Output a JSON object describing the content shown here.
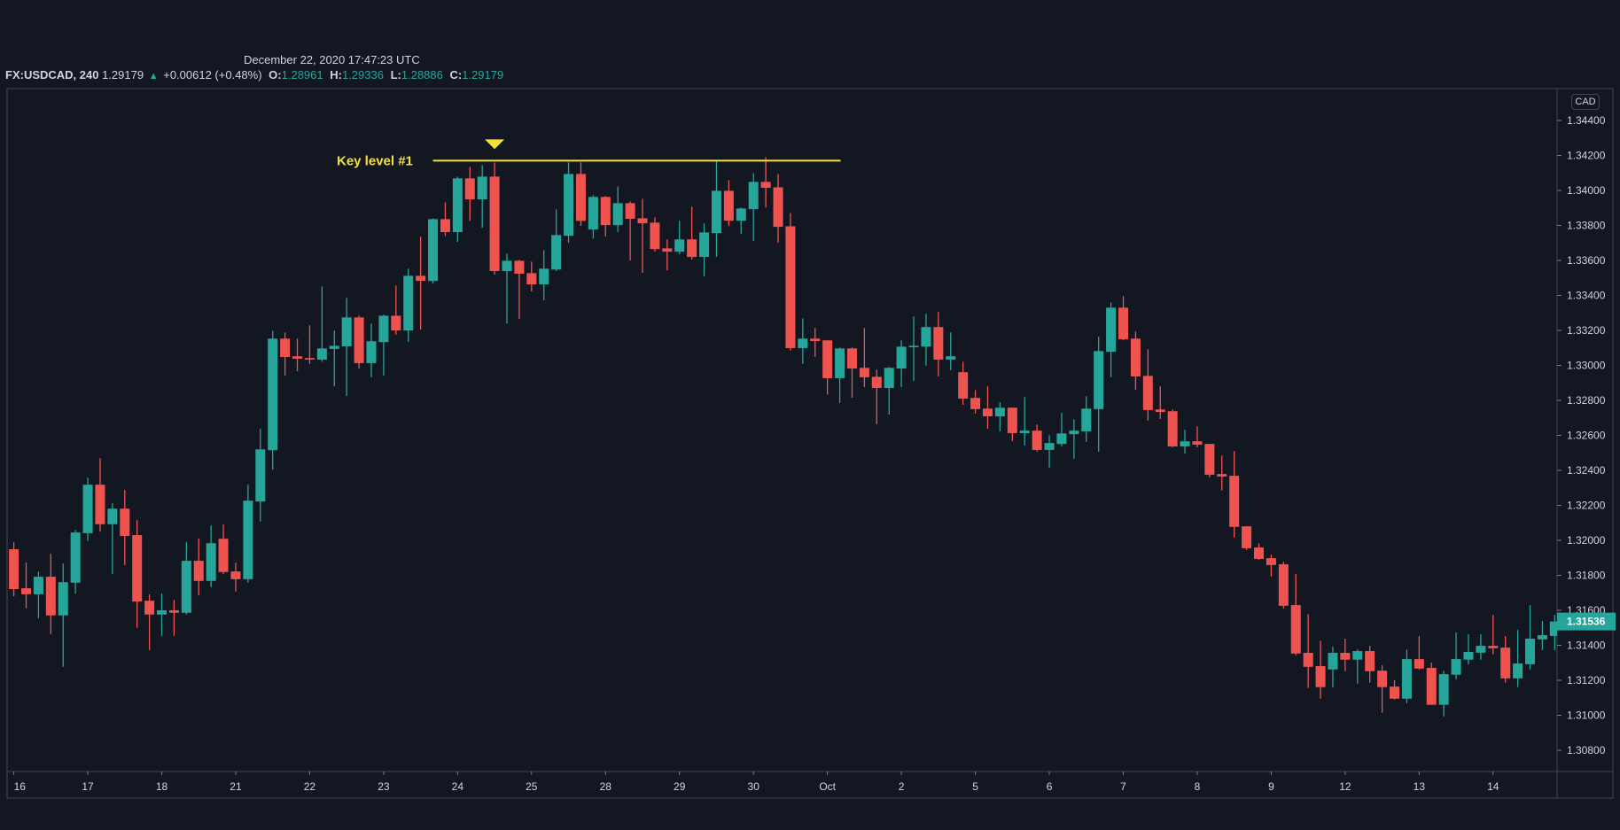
{
  "header": {
    "timestamp": "December 22, 2020 17:47:23 UTC",
    "symbol": "FX:USDCAD, 240",
    "last": "1.29179",
    "change_icon": "triangle-up-icon",
    "change": "+0.00612 (+0.48%)",
    "o_label": "O:",
    "o": "1.28961",
    "h_label": "H:",
    "h": "1.29336",
    "l_label": "L:",
    "l": "1.28886",
    "c_label": "C:",
    "c": "1.29179"
  },
  "price_axis": {
    "currency": "CAD",
    "ticks": [
      "1.34400",
      "1.34200",
      "1.34000",
      "1.33800",
      "1.33600",
      "1.33400",
      "1.33200",
      "1.33000",
      "1.32800",
      "1.32600",
      "1.32400",
      "1.32200",
      "1.32000",
      "1.31800",
      "1.31600",
      "1.31400",
      "1.31200",
      "1.31000",
      "1.30800"
    ],
    "last_price": "1.31536"
  },
  "time_axis": {
    "labels": [
      "16",
      "17",
      "18",
      "21",
      "22",
      "23",
      "24",
      "25",
      "28",
      "29",
      "30",
      "Oct",
      "2",
      "5",
      "6",
      "7",
      "8",
      "9",
      "12",
      "13",
      "14"
    ]
  },
  "annotation": {
    "label": "Key level #1",
    "price": 1.3417,
    "marker_icon": "triangle-down-icon",
    "color": "#f5e236"
  },
  "colors": {
    "background": "#131722",
    "up": "#26a69a",
    "down": "#ef5350",
    "border": "#434651",
    "text": "#d1d4dc"
  },
  "chart_data": {
    "type": "candlestick",
    "title": "",
    "ylabel": "CAD",
    "ylim": [
      1.307,
      1.3452
    ],
    "candles_per_day": 6,
    "ohlc_columns": [
      "open",
      "high",
      "low",
      "close"
    ],
    "ohlc": [
      [
        1.31949,
        1.31989,
        1.3168,
        1.31721
      ],
      [
        1.31726,
        1.31873,
        1.31611,
        1.31692
      ],
      [
        1.31692,
        1.31822,
        1.31555,
        1.31792
      ],
      [
        1.31792,
        1.31923,
        1.31464,
        1.31571
      ],
      [
        1.31571,
        1.31868,
        1.31277,
        1.31761
      ],
      [
        1.31758,
        1.3206,
        1.31696,
        1.32045
      ],
      [
        1.32041,
        1.32358,
        1.31996,
        1.32318
      ],
      [
        1.32318,
        1.3247,
        1.3205,
        1.32092
      ],
      [
        1.32092,
        1.32212,
        1.31808,
        1.32181
      ],
      [
        1.32181,
        1.32288,
        1.31859,
        1.32025
      ],
      [
        1.3203,
        1.32116,
        1.315,
        1.3165
      ],
      [
        1.31655,
        1.31691,
        1.31373,
        1.31576
      ],
      [
        1.31576,
        1.31696,
        1.31454,
        1.316
      ],
      [
        1.316,
        1.3166,
        1.31454,
        1.31586
      ],
      [
        1.31586,
        1.31989,
        1.31576,
        1.31883
      ],
      [
        1.31883,
        1.32009,
        1.31687,
        1.31768
      ],
      [
        1.31768,
        1.32085,
        1.31733,
        1.31984
      ],
      [
        1.32009,
        1.3209,
        1.31808,
        1.31819
      ],
      [
        1.31822,
        1.31873,
        1.31707,
        1.31778
      ],
      [
        1.31778,
        1.32318,
        1.31758,
        1.32227
      ],
      [
        1.32222,
        1.32637,
        1.32107,
        1.3252
      ],
      [
        1.32515,
        1.33198,
        1.32404,
        1.33153
      ],
      [
        1.33153,
        1.33188,
        1.32942,
        1.33048
      ],
      [
        1.33052,
        1.33153,
        1.32967,
        1.33038
      ],
      [
        1.33042,
        1.33229,
        1.33008,
        1.33033
      ],
      [
        1.33033,
        1.33451,
        1.33021,
        1.33097
      ],
      [
        1.33094,
        1.33198,
        1.32881,
        1.33112
      ],
      [
        1.33109,
        1.33386,
        1.32825,
        1.33274
      ],
      [
        1.33274,
        1.33284,
        1.32982,
        1.33013
      ],
      [
        1.33013,
        1.33239,
        1.32932,
        1.33138
      ],
      [
        1.33133,
        1.3329,
        1.32942,
        1.33284
      ],
      [
        1.33284,
        1.33457,
        1.33175,
        1.332
      ],
      [
        1.332,
        1.33553,
        1.33134,
        1.33512
      ],
      [
        1.33512,
        1.33735,
        1.33205,
        1.33483
      ],
      [
        1.33483,
        1.33841,
        1.33468,
        1.33836
      ],
      [
        1.33836,
        1.33932,
        1.3374,
        1.33762
      ],
      [
        1.33762,
        1.34079,
        1.33706,
        1.34069
      ],
      [
        1.34069,
        1.34135,
        1.33826,
        1.33949
      ],
      [
        1.33949,
        1.34145,
        1.33787,
        1.34079
      ],
      [
        1.34079,
        1.3416,
        1.33519,
        1.33539
      ],
      [
        1.33539,
        1.33639,
        1.3324,
        1.33598
      ],
      [
        1.33598,
        1.33603,
        1.33266,
        1.33524
      ],
      [
        1.33527,
        1.33593,
        1.33423,
        1.33463
      ],
      [
        1.33463,
        1.33659,
        1.33372,
        1.33553
      ],
      [
        1.33548,
        1.33892,
        1.33539,
        1.33745
      ],
      [
        1.33741,
        1.34161,
        1.33701,
        1.34094
      ],
      [
        1.34094,
        1.34161,
        1.33797,
        1.33826
      ],
      [
        1.33777,
        1.33973,
        1.33726,
        1.33963
      ],
      [
        1.33963,
        1.33968,
        1.33736,
        1.33802
      ],
      [
        1.33802,
        1.34023,
        1.33762,
        1.33927
      ],
      [
        1.33927,
        1.33937,
        1.336,
        1.33838
      ],
      [
        1.33841,
        1.33952,
        1.33529,
        1.33812
      ],
      [
        1.33816,
        1.33846,
        1.3365,
        1.33665
      ],
      [
        1.33669,
        1.3372,
        1.33544,
        1.3365
      ],
      [
        1.3365,
        1.33826,
        1.33635,
        1.3372
      ],
      [
        1.3372,
        1.33907,
        1.33605,
        1.3362
      ],
      [
        1.3362,
        1.33811,
        1.33509,
        1.3376
      ],
      [
        1.33756,
        1.34175,
        1.3362,
        1.33998
      ],
      [
        1.33998,
        1.34059,
        1.33797,
        1.33827
      ],
      [
        1.33827,
        1.33902,
        1.33751,
        1.33897
      ],
      [
        1.33893,
        1.34099,
        1.33711,
        1.34049
      ],
      [
        1.34049,
        1.3419,
        1.33903,
        1.34015
      ],
      [
        1.34018,
        1.34094,
        1.33701,
        1.33792
      ],
      [
        1.33795,
        1.33871,
        1.33084,
        1.33099
      ],
      [
        1.33099,
        1.33269,
        1.33008,
        1.33153
      ],
      [
        1.33153,
        1.33214,
        1.33048,
        1.33139
      ],
      [
        1.33143,
        1.33145,
        1.32834,
        1.32927
      ],
      [
        1.32927,
        1.33102,
        1.32785,
        1.33097
      ],
      [
        1.33097,
        1.33102,
        1.32815,
        1.32982
      ],
      [
        1.32986,
        1.33214,
        1.32876,
        1.32932
      ],
      [
        1.32935,
        1.32976,
        1.32664,
        1.32871
      ],
      [
        1.32871,
        1.32991,
        1.32719,
        1.32986
      ],
      [
        1.32982,
        1.33143,
        1.32876,
        1.33107
      ],
      [
        1.33104,
        1.33279,
        1.32912,
        1.33112
      ],
      [
        1.33107,
        1.33295,
        1.32998,
        1.33219
      ],
      [
        1.33219,
        1.33305,
        1.32937,
        1.33033
      ],
      [
        1.33033,
        1.33188,
        1.32972,
        1.33052
      ],
      [
        1.32961,
        1.33021,
        1.32775,
        1.3281
      ],
      [
        1.32814,
        1.32859,
        1.32724,
        1.3275
      ],
      [
        1.32753,
        1.3288,
        1.32638,
        1.32709
      ],
      [
        1.32709,
        1.32789,
        1.32623,
        1.32758
      ],
      [
        1.32758,
        1.3276,
        1.32567,
        1.32613
      ],
      [
        1.32613,
        1.32819,
        1.32542,
        1.32627
      ],
      [
        1.32627,
        1.32662,
        1.32507,
        1.32517
      ],
      [
        1.32517,
        1.32601,
        1.32416,
        1.32556
      ],
      [
        1.32551,
        1.32729,
        1.32537,
        1.32611
      ],
      [
        1.32607,
        1.32692,
        1.32466,
        1.32627
      ],
      [
        1.32623,
        1.32824,
        1.32562,
        1.32753
      ],
      [
        1.3275,
        1.33163,
        1.32507,
        1.33082
      ],
      [
        1.33078,
        1.3336,
        1.32932,
        1.3333
      ],
      [
        1.3333,
        1.33396,
        1.33144,
        1.33149
      ],
      [
        1.33153,
        1.33193,
        1.32861,
        1.32937
      ],
      [
        1.3294,
        1.33092,
        1.32684,
        1.32745
      ],
      [
        1.32748,
        1.3288,
        1.32694,
        1.32734
      ],
      [
        1.32738,
        1.32748,
        1.32532,
        1.32537
      ],
      [
        1.32537,
        1.32632,
        1.32497,
        1.32566
      ],
      [
        1.32566,
        1.32652,
        1.32532,
        1.32547
      ],
      [
        1.32551,
        1.32552,
        1.3236,
        1.32375
      ],
      [
        1.32379,
        1.32485,
        1.32284,
        1.32365
      ],
      [
        1.32369,
        1.3251,
        1.32016,
        1.32077
      ],
      [
        1.3208,
        1.32082,
        1.31945,
        1.31955
      ],
      [
        1.31959,
        1.31984,
        1.31889,
        1.31894
      ],
      [
        1.31898,
        1.31918,
        1.31793,
        1.31859
      ],
      [
        1.31863,
        1.31878,
        1.31611,
        1.31626
      ],
      [
        1.3163,
        1.31807,
        1.31343,
        1.31353
      ],
      [
        1.31357,
        1.31579,
        1.31156,
        1.31277
      ],
      [
        1.31281,
        1.31427,
        1.31095,
        1.31161
      ],
      [
        1.31262,
        1.31392,
        1.31161,
        1.31357
      ],
      [
        1.31357,
        1.31438,
        1.31252,
        1.31318
      ],
      [
        1.31318,
        1.31377,
        1.31181,
        1.31367
      ],
      [
        1.31367,
        1.31397,
        1.31186,
        1.31252
      ],
      [
        1.31255,
        1.31286,
        1.31014,
        1.31161
      ],
      [
        1.31164,
        1.312,
        1.3109,
        1.31095
      ],
      [
        1.31095,
        1.31377,
        1.3107,
        1.31321
      ],
      [
        1.31321,
        1.31453,
        1.31262,
        1.31267
      ],
      [
        1.31271,
        1.31301,
        1.3106,
        1.3106
      ],
      [
        1.3106,
        1.31255,
        1.30994,
        1.31235
      ],
      [
        1.31232,
        1.31473,
        1.31206,
        1.31321
      ],
      [
        1.31318,
        1.31463,
        1.31292,
        1.31362
      ],
      [
        1.31358,
        1.31463,
        1.31318,
        1.31397
      ],
      [
        1.31397,
        1.31574,
        1.31348,
        1.31383
      ],
      [
        1.31387,
        1.31453,
        1.31186,
        1.31211
      ],
      [
        1.31211,
        1.31488,
        1.31161,
        1.31296
      ],
      [
        1.31292,
        1.3163,
        1.31262,
        1.31438
      ],
      [
        1.31434,
        1.31539,
        1.31373,
        1.31458
      ],
      [
        1.31453,
        1.31574,
        1.31373,
        1.31536
      ]
    ]
  }
}
